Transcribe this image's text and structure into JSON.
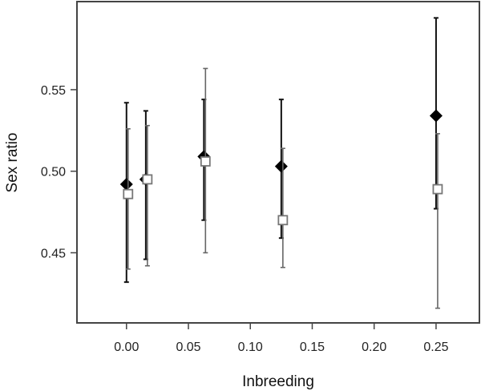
{
  "chart_data": {
    "type": "scatter",
    "title": "",
    "xlabel": "Inbreeding",
    "ylabel": "Sex ratio",
    "xlim": [
      -0.04,
      0.285
    ],
    "ylim": [
      0.407,
      0.604
    ],
    "xticks": [
      0.0,
      0.05,
      0.1,
      0.15,
      0.2,
      0.25
    ],
    "xtick_labels": [
      "0.00",
      "0.05",
      "0.10",
      "0.15",
      "0.20",
      "0.25"
    ],
    "yticks": [
      0.45,
      0.5,
      0.55
    ],
    "ytick_labels": [
      "0.45",
      "0.50",
      "0.55"
    ],
    "grid": false,
    "series": [
      {
        "marker": "filled-diamond",
        "color": "#000000",
        "error_color": "#111111",
        "points": [
          {
            "x": 0.0,
            "y": 0.492,
            "lo": 0.432,
            "hi": 0.542
          },
          {
            "x": 0.0156,
            "y": 0.495,
            "lo": 0.446,
            "hi": 0.537
          },
          {
            "x": 0.0625,
            "y": 0.509,
            "lo": 0.47,
            "hi": 0.544
          },
          {
            "x": 0.125,
            "y": 0.503,
            "lo": 0.459,
            "hi": 0.544
          },
          {
            "x": 0.25,
            "y": 0.534,
            "lo": 0.477,
            "hi": 0.594
          }
        ]
      },
      {
        "marker": "open-square",
        "color": "#777777",
        "error_color": "#666666",
        "points": [
          {
            "x": 0.0,
            "y": 0.486,
            "lo": 0.44,
            "hi": 0.526
          },
          {
            "x": 0.0156,
            "y": 0.495,
            "lo": 0.442,
            "hi": 0.528
          },
          {
            "x": 0.0625,
            "y": 0.506,
            "lo": 0.45,
            "hi": 0.563
          },
          {
            "x": 0.125,
            "y": 0.47,
            "lo": 0.441,
            "hi": 0.514
          },
          {
            "x": 0.25,
            "y": 0.489,
            "lo": 0.416,
            "hi": 0.523
          }
        ]
      }
    ]
  }
}
